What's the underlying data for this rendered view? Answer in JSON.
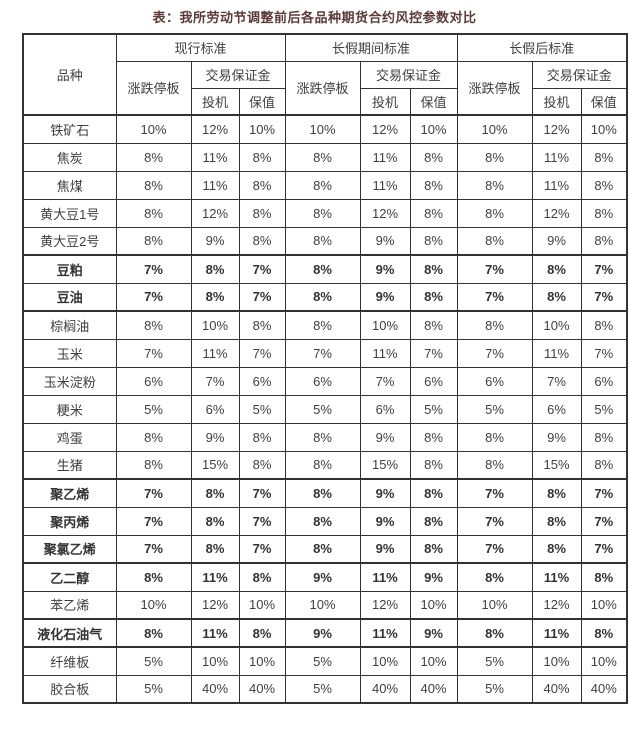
{
  "title": "表：我所劳动节调整前后各品种期货合约风控参数对比",
  "table": {
    "product_header": "品种",
    "sections": [
      "现行标准",
      "长假期间标准",
      "长假后标准"
    ],
    "sub_headers": {
      "price_limit": "涨跌停板",
      "margin": "交易保证金",
      "speculation": "投机",
      "hedging": "保值"
    },
    "rows": [
      {
        "name": "铁矿石",
        "bold": false,
        "group_start": false,
        "values": [
          "10%",
          "12%",
          "10%",
          "10%",
          "12%",
          "10%",
          "10%",
          "12%",
          "10%"
        ]
      },
      {
        "name": "焦炭",
        "bold": false,
        "group_start": false,
        "values": [
          "8%",
          "11%",
          "8%",
          "8%",
          "11%",
          "8%",
          "8%",
          "11%",
          "8%"
        ]
      },
      {
        "name": "焦煤",
        "bold": false,
        "group_start": false,
        "values": [
          "8%",
          "11%",
          "8%",
          "8%",
          "11%",
          "8%",
          "8%",
          "11%",
          "8%"
        ]
      },
      {
        "name": "黄大豆1号",
        "bold": false,
        "group_start": false,
        "values": [
          "8%",
          "12%",
          "8%",
          "8%",
          "12%",
          "8%",
          "8%",
          "12%",
          "8%"
        ]
      },
      {
        "name": "黄大豆2号",
        "bold": false,
        "group_start": false,
        "values": [
          "8%",
          "9%",
          "8%",
          "8%",
          "9%",
          "8%",
          "8%",
          "9%",
          "8%"
        ]
      },
      {
        "name": "豆粕",
        "bold": true,
        "group_start": true,
        "values": [
          "7%",
          "8%",
          "7%",
          "8%",
          "9%",
          "8%",
          "7%",
          "8%",
          "7%"
        ]
      },
      {
        "name": "豆油",
        "bold": true,
        "group_start": false,
        "values": [
          "7%",
          "8%",
          "7%",
          "8%",
          "9%",
          "8%",
          "7%",
          "8%",
          "7%"
        ]
      },
      {
        "name": "棕榈油",
        "bold": false,
        "group_start": true,
        "values": [
          "8%",
          "10%",
          "8%",
          "8%",
          "10%",
          "8%",
          "8%",
          "10%",
          "8%"
        ]
      },
      {
        "name": "玉米",
        "bold": false,
        "group_start": false,
        "values": [
          "7%",
          "11%",
          "7%",
          "7%",
          "11%",
          "7%",
          "7%",
          "11%",
          "7%"
        ]
      },
      {
        "name": "玉米淀粉",
        "bold": false,
        "group_start": false,
        "values": [
          "6%",
          "7%",
          "6%",
          "6%",
          "7%",
          "6%",
          "6%",
          "7%",
          "6%"
        ]
      },
      {
        "name": "粳米",
        "bold": false,
        "group_start": false,
        "values": [
          "5%",
          "6%",
          "5%",
          "5%",
          "6%",
          "5%",
          "5%",
          "6%",
          "5%"
        ]
      },
      {
        "name": "鸡蛋",
        "bold": false,
        "group_start": false,
        "values": [
          "8%",
          "9%",
          "8%",
          "8%",
          "9%",
          "8%",
          "8%",
          "9%",
          "8%"
        ]
      },
      {
        "name": "生猪",
        "bold": false,
        "group_start": false,
        "values": [
          "8%",
          "15%",
          "8%",
          "8%",
          "15%",
          "8%",
          "8%",
          "15%",
          "8%"
        ]
      },
      {
        "name": "聚乙烯",
        "bold": true,
        "group_start": true,
        "values": [
          "7%",
          "8%",
          "7%",
          "8%",
          "9%",
          "8%",
          "7%",
          "8%",
          "7%"
        ]
      },
      {
        "name": "聚丙烯",
        "bold": true,
        "group_start": false,
        "values": [
          "7%",
          "8%",
          "7%",
          "8%",
          "9%",
          "8%",
          "7%",
          "8%",
          "7%"
        ]
      },
      {
        "name": "聚氯乙烯",
        "bold": true,
        "group_start": false,
        "values": [
          "7%",
          "8%",
          "7%",
          "8%",
          "9%",
          "8%",
          "7%",
          "8%",
          "7%"
        ]
      },
      {
        "name": "乙二醇",
        "bold": true,
        "group_start": true,
        "values": [
          "8%",
          "11%",
          "8%",
          "9%",
          "11%",
          "9%",
          "8%",
          "11%",
          "8%"
        ]
      },
      {
        "name": "苯乙烯",
        "bold": false,
        "group_start": false,
        "values": [
          "10%",
          "12%",
          "10%",
          "10%",
          "12%",
          "10%",
          "10%",
          "12%",
          "10%"
        ]
      },
      {
        "name": "液化石油气",
        "bold": true,
        "group_start": true,
        "values": [
          "8%",
          "11%",
          "8%",
          "9%",
          "11%",
          "9%",
          "8%",
          "11%",
          "8%"
        ]
      },
      {
        "name": "纤维板",
        "bold": false,
        "group_start": true,
        "values": [
          "5%",
          "10%",
          "10%",
          "5%",
          "10%",
          "10%",
          "5%",
          "10%",
          "10%"
        ]
      },
      {
        "name": "胶合板",
        "bold": false,
        "group_start": false,
        "values": [
          "5%",
          "40%",
          "40%",
          "5%",
          "40%",
          "40%",
          "5%",
          "40%",
          "40%"
        ]
      }
    ]
  }
}
